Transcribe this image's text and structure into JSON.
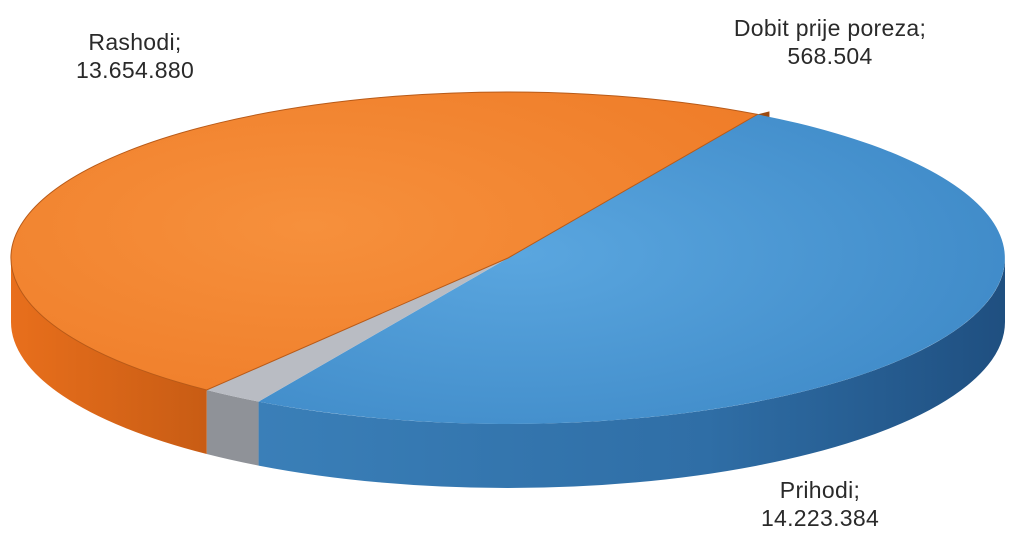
{
  "chart_data": {
    "type": "pie",
    "style": "3d",
    "slices": [
      {
        "name": "Rashodi",
        "value": "13.654.880",
        "numeric": 13654880,
        "color": "#f07f2c"
      },
      {
        "name": "Dobit prije poreza",
        "value": "568.504",
        "numeric": 568504,
        "color": "#b9bcc3"
      },
      {
        "name": "Prihodi",
        "value": "14.223.384",
        "numeric": 14223384,
        "color": "#4a96d2"
      }
    ]
  },
  "labels": {
    "rashodi": {
      "name": "Rashodi;",
      "value": "13.654.880"
    },
    "dobit": {
      "name": "Dobit prije poreza;",
      "value": "568.504"
    },
    "prihodi": {
      "name": "Prihodi;",
      "value": "14.223.384"
    }
  }
}
